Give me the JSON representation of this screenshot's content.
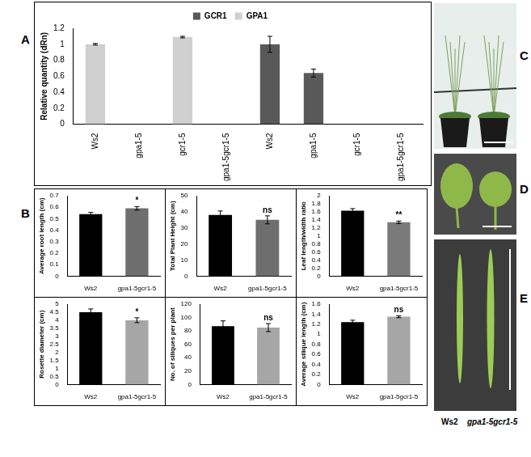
{
  "chart_data": [
    {
      "type": "bar",
      "categories": [
        "Ws2",
        "gpa1-5",
        "gcr1-5",
        "gpa1-5gcr1-5",
        "Ws2",
        "gpa1-5",
        "gcr1-5",
        "gpa1-5gcr1-5"
      ],
      "y_label": "Relative quantity (dRn)",
      "ylim": [
        0,
        1.2
      ],
      "yticks": [
        0,
        0.2,
        0.4,
        0.6,
        0.8,
        1,
        1.2
      ],
      "grid": false,
      "legend": "top",
      "series": [
        {
          "name": "GCR1",
          "color": "#595959",
          "values": [
            null,
            null,
            null,
            null,
            1.0,
            0.64,
            0,
            0
          ],
          "errors": [
            null,
            null,
            null,
            null,
            0.1,
            0.05,
            0,
            0
          ]
        },
        {
          "name": "GPA1",
          "color": "#d0d0d0",
          "values": [
            1.0,
            0,
            1.09,
            0,
            null,
            null,
            null,
            null
          ],
          "errors": [
            0.01,
            0,
            0.01,
            0,
            null,
            null,
            null,
            null
          ]
        }
      ]
    },
    {
      "type": "bar",
      "categories": [
        "Ws2",
        "gpa1-5gcr1-5"
      ],
      "values": [
        0.54,
        0.59
      ],
      "errors": [
        0.015,
        0.015
      ],
      "colors": [
        "#000000",
        "#6e6e6e"
      ],
      "y_label": "Average root length (cm)",
      "ylim": [
        0,
        0.7
      ],
      "yticks": [
        0,
        0.1,
        0.2,
        0.3,
        0.4,
        0.5,
        0.6,
        0.7
      ],
      "annotation": "*",
      "grid": false
    },
    {
      "type": "bar",
      "categories": [
        "Ws2",
        "gpa1-5gcr1-5"
      ],
      "values": [
        38,
        35
      ],
      "errors": [
        2.5,
        2.5
      ],
      "colors": [
        "#000000",
        "#6e6e6e"
      ],
      "y_label": "Total Plant Height (cm)",
      "ylim": [
        0,
        50
      ],
      "yticks": [
        0,
        10,
        20,
        30,
        40,
        50
      ],
      "annotation": "ns",
      "grid": false
    },
    {
      "type": "bar",
      "categories": [
        "Ws2",
        "gpa1-5gcr1-5"
      ],
      "values": [
        1.63,
        1.34
      ],
      "errors": [
        0.05,
        0.03
      ],
      "colors": [
        "#000000",
        "#7a7a7a"
      ],
      "y_label": "Leaf length/width ratio",
      "ylim": [
        0,
        2
      ],
      "yticks": [
        0,
        0.2,
        0.4,
        0.6,
        0.8,
        1,
        1.2,
        1.4,
        1.6,
        1.8,
        2
      ],
      "annotation": "**",
      "grid": false
    },
    {
      "type": "bar",
      "categories": [
        "Ws2",
        "gpa1-5gcr1-5"
      ],
      "values": [
        4.5,
        4.0
      ],
      "errors": [
        0.2,
        0.15
      ],
      "colors": [
        "#000000",
        "#a6a6a6"
      ],
      "y_label": "Rosette diameter (cm)",
      "ylim": [
        0,
        5
      ],
      "yticks": [
        0,
        0.5,
        1,
        1.5,
        2,
        2.5,
        3,
        3.5,
        4,
        4.5,
        5
      ],
      "annotation": "*",
      "grid": false
    },
    {
      "type": "bar",
      "categories": [
        "Ws2",
        "gpa1-5gcr1-5"
      ],
      "values": [
        87,
        85
      ],
      "errors": [
        8,
        6
      ],
      "colors": [
        "#000000",
        "#a6a6a6"
      ],
      "y_label": "No. of siliques per plant",
      "ylim": [
        0,
        120
      ],
      "yticks": [
        0,
        20,
        40,
        60,
        80,
        100,
        120
      ],
      "annotation": "ns",
      "grid": false
    },
    {
      "type": "bar",
      "categories": [
        "Ws2",
        "gpa1-5gcr1-5"
      ],
      "values": [
        1.24,
        1.35
      ],
      "errors": [
        0.04,
        0.02
      ],
      "colors": [
        "#000000",
        "#a6a6a6"
      ],
      "y_label": "Average silique length (cm)",
      "ylim": [
        0,
        1.6
      ],
      "yticks": [
        0,
        0.2,
        0.4,
        0.6,
        0.8,
        1,
        1.2,
        1.4,
        1.6
      ],
      "annotation": "ns",
      "grid": false
    }
  ],
  "panel_labels": [
    "A",
    "B",
    "C",
    "D",
    "E"
  ],
  "photo_labels": [
    "Ws2",
    "gpa1-5gcr1-5"
  ]
}
